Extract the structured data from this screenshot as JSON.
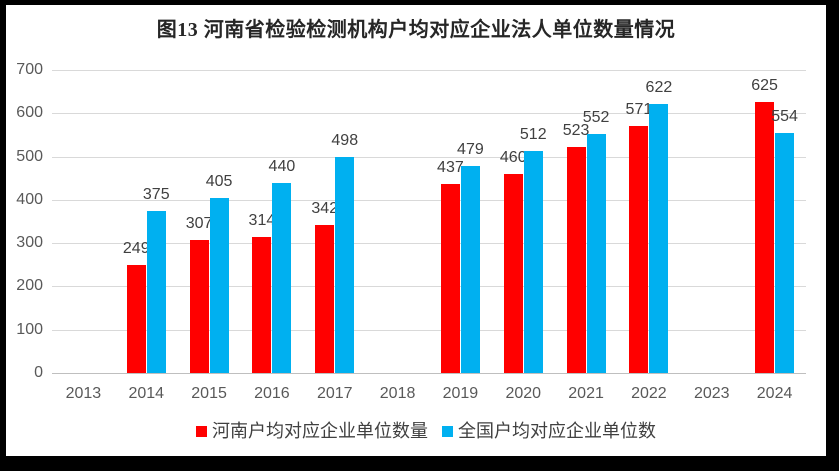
{
  "title": "图13 河南省检验检测机构户均对应企业法人单位数量情况",
  "chart_data": {
    "type": "bar",
    "categories": [
      "2013",
      "2014",
      "2015",
      "2016",
      "2017",
      "2018",
      "2019",
      "2020",
      "2021",
      "2022",
      "2023",
      "2024"
    ],
    "series": [
      {
        "name": "河南户均对应企业单位数量",
        "color": "#FF0000",
        "values": [
          null,
          249,
          307,
          314,
          342,
          null,
          437,
          460,
          523,
          571,
          null,
          625
        ]
      },
      {
        "name": "全国户均对应企业单位数",
        "color": "#00B0F0",
        "values": [
          null,
          375,
          405,
          440,
          498,
          null,
          479,
          512,
          552,
          622,
          null,
          554
        ]
      }
    ],
    "ylim": [
      0,
      700
    ],
    "yticks": [
      0,
      100,
      200,
      300,
      400,
      500,
      600,
      700
    ],
    "grid": true,
    "legend_position": "bottom",
    "value_labels": true
  },
  "colors": {
    "frame_border": "#000000",
    "background": "#FFFFFF",
    "gridline": "#D9D9D9",
    "axis_line": "#BFBFBF",
    "tick_label": "#595959",
    "value_label": "#404040",
    "title_text": "#262626",
    "legend_text": "#404040"
  }
}
